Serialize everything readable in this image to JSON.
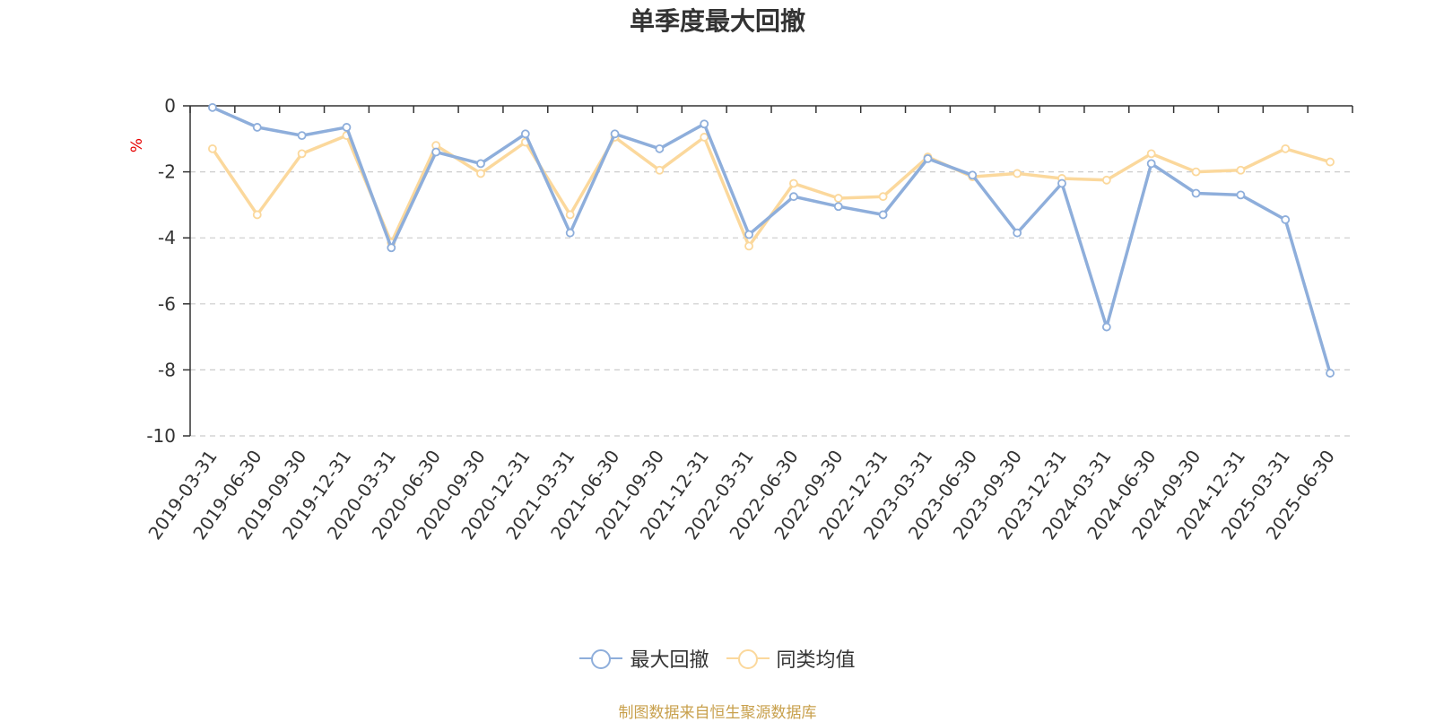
{
  "colors": {
    "series_1": "#8eaedb",
    "series_2": "#fbd89c",
    "axis": "#333333",
    "grid": "#cccccc",
    "ylabel": "#e60000",
    "source_note": "#c8a04c"
  },
  "chart_data": {
    "type": "line",
    "title": "单季度最大回撤",
    "ylabel": "%",
    "xlabel": "",
    "ylim": [
      -10,
      0
    ],
    "yticks": [
      0,
      -2,
      -4,
      -6,
      -8,
      -10
    ],
    "grid": "horizontal-dashed",
    "legend_placement": "bottom-center",
    "categories": [
      "2019-03-31",
      "2019-06-30",
      "2019-09-30",
      "2019-12-31",
      "2020-03-31",
      "2020-06-30",
      "2020-09-30",
      "2020-12-31",
      "2021-03-31",
      "2021-06-30",
      "2021-09-30",
      "2021-12-31",
      "2022-03-31",
      "2022-06-30",
      "2022-09-30",
      "2022-12-31",
      "2023-03-31",
      "2023-06-30",
      "2023-09-30",
      "2023-12-31",
      "2024-03-31",
      "2024-06-30",
      "2024-09-30",
      "2024-12-31",
      "2025-03-31",
      "2025-06-30"
    ],
    "series": [
      {
        "name": "最大回撤",
        "values": [
          -0.05,
          -0.65,
          -0.9,
          -0.65,
          -4.3,
          -1.4,
          -1.75,
          -0.85,
          -3.85,
          -0.85,
          -1.3,
          -0.55,
          -3.9,
          -2.75,
          -3.05,
          -3.3,
          -1.6,
          -2.1,
          -3.85,
          -2.35,
          -6.7,
          -1.75,
          -2.65,
          -2.7,
          -3.45,
          -8.1
        ]
      },
      {
        "name": "同类均值",
        "values": [
          -1.3,
          -3.3,
          -1.45,
          -0.9,
          -4.15,
          -1.2,
          -2.05,
          -1.1,
          -3.3,
          -0.95,
          -1.95,
          -0.95,
          -4.25,
          -2.35,
          -2.8,
          -2.75,
          -1.55,
          -2.15,
          -2.05,
          -2.2,
          -2.25,
          -1.45,
          -2.0,
          -1.95,
          -1.3,
          -1.7
        ]
      }
    ]
  },
  "source_note": "制图数据来自恒生聚源数据库"
}
